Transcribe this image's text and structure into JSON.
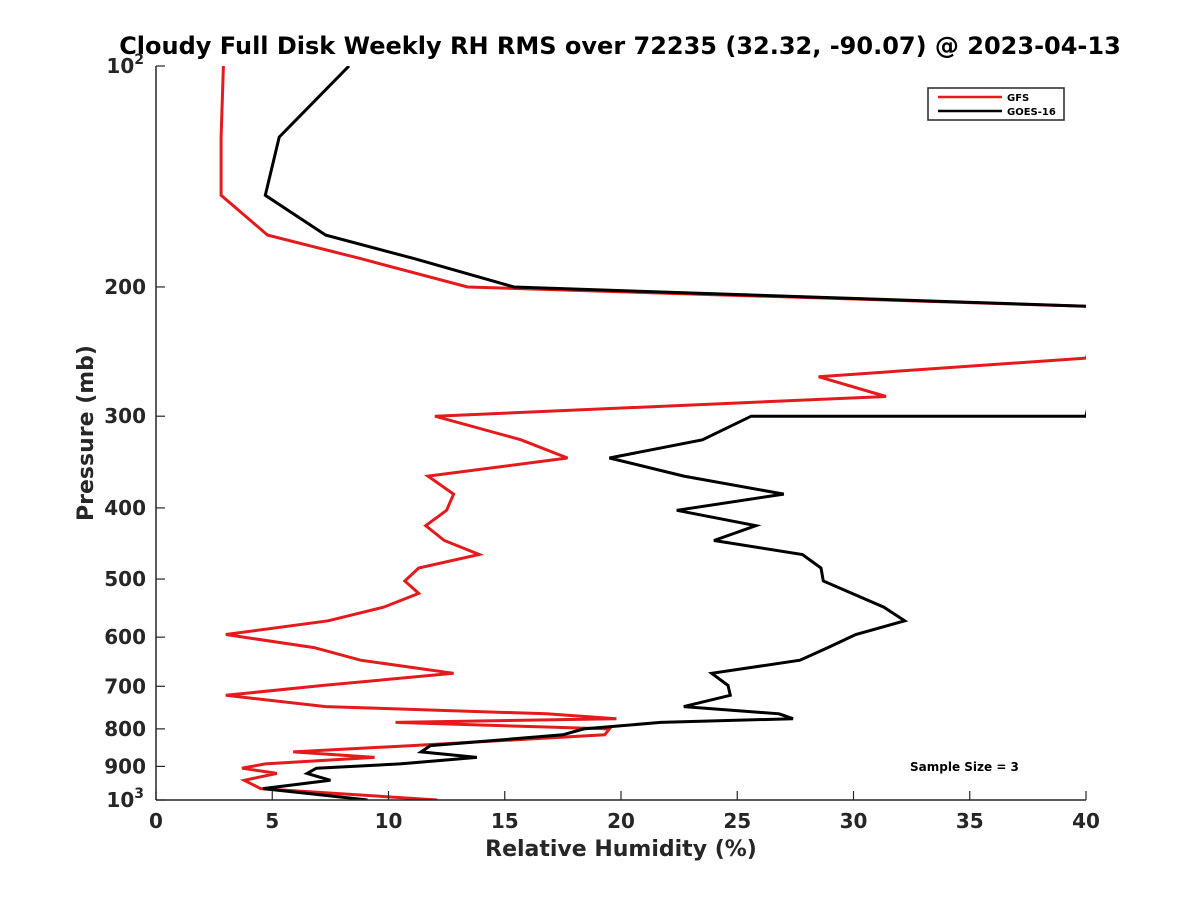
{
  "chart_data": {
    "type": "line",
    "title": "Cloudy Full Disk Weekly RH RMS over 72235 (32.32, -90.07) @ 2023-04-13",
    "xlabel": "Relative Humidity (%)",
    "ylabel": "Pressure (mb)",
    "xlim": [
      0,
      40
    ],
    "ylim": [
      100,
      1000
    ],
    "yscale": "log",
    "y_reversed": true,
    "x_ticks": [
      0,
      5,
      10,
      15,
      20,
      25,
      30,
      35,
      40
    ],
    "x_tick_labels": [
      "0",
      "5",
      "10",
      "15",
      "20",
      "25",
      "30",
      "35",
      "40"
    ],
    "y_ticks": [
      100,
      200,
      300,
      400,
      500,
      600,
      700,
      800,
      900,
      1000
    ],
    "y_tick_labels": [
      {
        "base": "10",
        "exp": "2"
      },
      {
        "base": "200",
        "exp": ""
      },
      {
        "base": "300",
        "exp": ""
      },
      {
        "base": "400",
        "exp": ""
      },
      {
        "base": "500",
        "exp": ""
      },
      {
        "base": "600",
        "exp": ""
      },
      {
        "base": "700",
        "exp": ""
      },
      {
        "base": "800",
        "exp": ""
      },
      {
        "base": "900",
        "exp": ""
      },
      {
        "base": "10",
        "exp": "3"
      }
    ],
    "legend_position": "top-right",
    "annotation": "Sample Size = 3",
    "series": [
      {
        "name": "GFS",
        "color": "#e41a1c",
        "points": [
          [
            2.9,
            100
          ],
          [
            2.8,
            125
          ],
          [
            2.8,
            150
          ],
          [
            4.8,
            170
          ],
          [
            8.8,
            183
          ],
          [
            13.4,
            200
          ],
          [
            41.0,
            213
          ],
          [
            40.0,
            250
          ],
          [
            28.5,
            265
          ],
          [
            31.4,
            282
          ],
          [
            12.0,
            300
          ],
          [
            15.7,
            323
          ],
          [
            17.7,
            342
          ],
          [
            11.7,
            362
          ],
          [
            12.8,
            383
          ],
          [
            12.5,
            403
          ],
          [
            11.6,
            423
          ],
          [
            12.4,
            443
          ],
          [
            13.9,
            463
          ],
          [
            11.3,
            483
          ],
          [
            10.7,
            503
          ],
          [
            11.3,
            523
          ],
          [
            9.8,
            546
          ],
          [
            7.4,
            570
          ],
          [
            3.0,
            595
          ],
          [
            6.8,
            620
          ],
          [
            8.8,
            645
          ],
          [
            12.8,
            672
          ],
          [
            7.2,
            698
          ],
          [
            3.0,
            720
          ],
          [
            7.3,
            746
          ],
          [
            16.8,
            763
          ],
          [
            19.8,
            775
          ],
          [
            10.3,
            784
          ],
          [
            19.5,
            800
          ],
          [
            19.3,
            815
          ],
          [
            11.0,
            843
          ],
          [
            5.9,
            860
          ],
          [
            9.4,
            875
          ],
          [
            4.7,
            893
          ],
          [
            3.7,
            905
          ],
          [
            5.2,
            920
          ],
          [
            3.8,
            940
          ],
          [
            4.5,
            965
          ],
          [
            12.1,
            1000
          ]
        ]
      },
      {
        "name": "GOES-16",
        "color": "#000000",
        "points": [
          [
            8.3,
            100
          ],
          [
            5.3,
            125
          ],
          [
            4.7,
            150
          ],
          [
            7.3,
            170
          ],
          [
            11.1,
            183
          ],
          [
            15.4,
            200
          ],
          [
            41.0,
            213
          ],
          [
            40.0,
            300
          ],
          [
            25.6,
            300
          ],
          [
            23.5,
            323
          ],
          [
            19.5,
            342
          ],
          [
            22.7,
            362
          ],
          [
            27.0,
            383
          ],
          [
            22.4,
            403
          ],
          [
            25.8,
            423
          ],
          [
            24.0,
            443
          ],
          [
            27.8,
            463
          ],
          [
            28.6,
            483
          ],
          [
            28.7,
            503
          ],
          [
            31.3,
            546
          ],
          [
            32.2,
            570
          ],
          [
            30.1,
            595
          ],
          [
            28.9,
            620
          ],
          [
            27.7,
            645
          ],
          [
            23.9,
            672
          ],
          [
            24.6,
            698
          ],
          [
            24.7,
            720
          ],
          [
            22.7,
            746
          ],
          [
            26.8,
            763
          ],
          [
            27.4,
            775
          ],
          [
            21.7,
            784
          ],
          [
            18.4,
            800
          ],
          [
            17.5,
            815
          ],
          [
            11.8,
            843
          ],
          [
            11.4,
            860
          ],
          [
            13.8,
            875
          ],
          [
            10.5,
            893
          ],
          [
            6.9,
            905
          ],
          [
            6.5,
            920
          ],
          [
            7.5,
            940
          ],
          [
            4.6,
            965
          ],
          [
            6.6,
            980
          ],
          [
            9.1,
            1000
          ]
        ]
      }
    ]
  }
}
